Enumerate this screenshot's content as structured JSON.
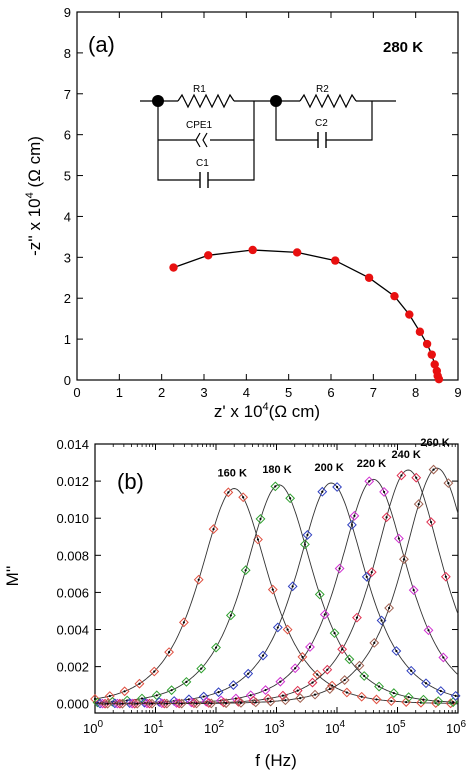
{
  "chart_data": [
    {
      "type": "scatter",
      "panel_label": "(a)",
      "annotation": "280 K",
      "xlabel_parts": [
        "z' x 10",
        "4",
        "(Ω cm)"
      ],
      "ylabel_parts": [
        "-z'' x 10",
        "4",
        " (Ω cm)"
      ],
      "xlim": [
        0,
        9
      ],
      "ylim": [
        0,
        9
      ],
      "xticks": [
        0,
        1,
        2,
        3,
        4,
        5,
        6,
        7,
        8,
        9
      ],
      "yticks": [
        0,
        1,
        2,
        3,
        4,
        5,
        6,
        7,
        8,
        9
      ],
      "grid": false,
      "colors": {
        "points": "#e81010",
        "fit": "#000000"
      },
      "points": {
        "x": [
          2.28,
          3.1,
          4.15,
          5.2,
          6.1,
          6.9,
          7.5,
          7.85,
          8.1,
          8.27,
          8.38,
          8.45,
          8.5,
          8.52,
          8.55
        ],
        "y": [
          2.75,
          3.05,
          3.18,
          3.12,
          2.92,
          2.5,
          2.05,
          1.6,
          1.18,
          0.88,
          0.62,
          0.38,
          0.22,
          0.1,
          0.02
        ]
      },
      "circuit": {
        "labels": [
          "R1",
          "CPE1",
          "C1",
          "R2",
          "C2"
        ]
      }
    },
    {
      "type": "scatter",
      "panel_label": "(b)",
      "xlabel": "f (Hz)",
      "ylabel": "M''",
      "x_scale": "log",
      "xlim": [
        1,
        1000000
      ],
      "ylim": [
        -0.0005,
        0.014
      ],
      "xticks": [
        {
          "base": "10",
          "exp": "0"
        },
        {
          "base": "10",
          "exp": "1"
        },
        {
          "base": "10",
          "exp": "2"
        },
        {
          "base": "10",
          "exp": "3"
        },
        {
          "base": "10",
          "exp": "4"
        },
        {
          "base": "10",
          "exp": "5"
        },
        {
          "base": "10",
          "exp": "6"
        }
      ],
      "yticks": [
        "0.000",
        "0.002",
        "0.004",
        "0.006",
        "0.008",
        "0.010",
        "0.012",
        "0.014"
      ],
      "ytick_values": [
        0,
        0.002,
        0.004,
        0.006,
        0.008,
        0.01,
        0.012,
        0.014
      ],
      "grid": false,
      "series": [
        {
          "name": "160 K",
          "color": "#e05040",
          "peak_f": 200,
          "peak_m": 0.0116
        },
        {
          "name": "180 K",
          "color": "#30a030",
          "peak_f": 1100,
          "peak_m": 0.0118
        },
        {
          "name": "200 K",
          "color": "#3040c0",
          "peak_f": 8000,
          "peak_m": 0.0119
        },
        {
          "name": "220 K",
          "color": "#d030d0",
          "peak_f": 40000,
          "peak_m": 0.0121
        },
        {
          "name": "240 K",
          "color": "#e03050",
          "peak_f": 150000,
          "peak_m": 0.0126
        },
        {
          "name": "260 K",
          "color": "#a06050",
          "peak_f": 450000,
          "peak_m": 0.0127
        }
      ]
    }
  ]
}
